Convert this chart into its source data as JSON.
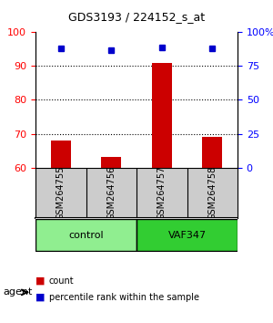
{
  "title": "GDS3193 / 224152_s_at",
  "samples": [
    "GSM264755",
    "GSM264756",
    "GSM264757",
    "GSM264758"
  ],
  "counts": [
    68,
    63,
    91,
    69
  ],
  "percentile_ranks": [
    88,
    87,
    89,
    88
  ],
  "ylim_left": [
    60,
    100
  ],
  "ylim_right": [
    0,
    100
  ],
  "yticks_left": [
    60,
    70,
    80,
    90,
    100
  ],
  "yticks_right": [
    0,
    25,
    50,
    75,
    100
  ],
  "ytick_labels_right": [
    "0",
    "25",
    "50",
    "75",
    "100%"
  ],
  "groups": [
    {
      "label": "control",
      "samples": [
        0,
        1
      ],
      "color": "#90EE90"
    },
    {
      "label": "VAF347",
      "samples": [
        2,
        3
      ],
      "color": "#32CD32"
    }
  ],
  "bar_color": "#CC0000",
  "dot_color": "#0000CC",
  "agent_label": "agent",
  "legend_bar_label": "count",
  "legend_dot_label": "percentile rank within the sample",
  "background_color": "#ffffff",
  "plot_bg_color": "#ffffff",
  "grid_color": "#000000",
  "bar_width": 0.4
}
